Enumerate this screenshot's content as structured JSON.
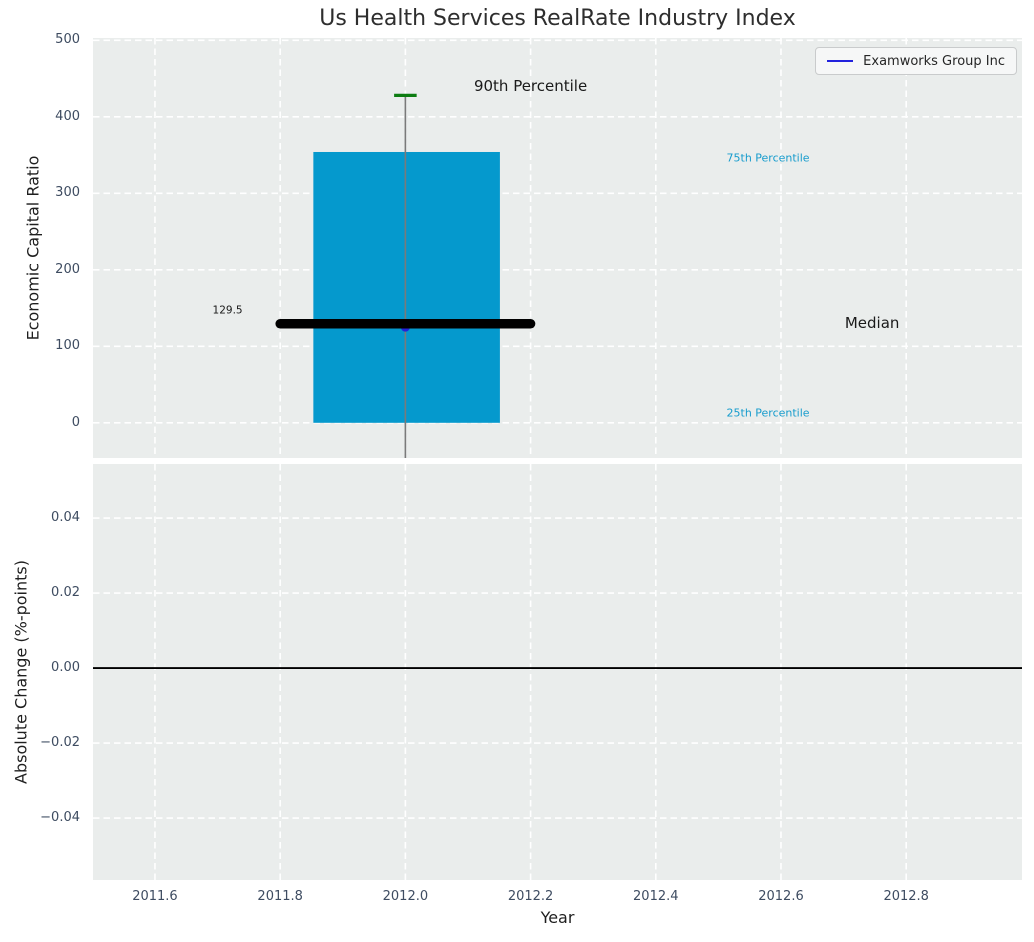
{
  "title": "Us Health Services RealRate Industry Index",
  "legend": {
    "label": "Examworks Group Inc"
  },
  "x_axis": {
    "label": "Year"
  },
  "top_chart": {
    "ylabel": "Economic Capital Ratio"
  },
  "bottom_chart": {
    "ylabel": "Absolute Change (%-points)"
  },
  "colors": {
    "axes_bg": "#eaedec",
    "grid": "#ffffff",
    "box_fill": "#0599cd",
    "whisker": "#7a7a7a",
    "cap_green": "#0d7d12",
    "median_line": "#000000",
    "company": "#2222dd",
    "zero_line": "#000000",
    "tick_label": "#3e4c61",
    "axis_label": "#1f1f1f",
    "title_color": "#2e2e2e",
    "percentile_label": "#179ccd",
    "annotation_dark": "#1a1a1a",
    "legend_bg": "#f6f7f7",
    "legend_border": "#c9cbcc"
  },
  "chart_data": [
    {
      "type": "boxplot",
      "title": "Us Health Services RealRate Industry Index",
      "xlabel": "Year",
      "ylabel": "Economic Capital Ratio",
      "xlim": [
        2011.501,
        2012.985
      ],
      "ylim": [
        -46,
        503
      ],
      "xticks": [
        2011.6,
        2011.8,
        2012.0,
        2012.2,
        2012.4,
        2012.6,
        2012.8
      ],
      "yticks": [
        0,
        100,
        200,
        300,
        400,
        500
      ],
      "xformat": "f1",
      "yformat": "int",
      "show_xtick_labels": false,
      "grid": true,
      "box": {
        "x": 2012.0,
        "box_left": 2011.853,
        "box_right": 2012.151,
        "p25": 0,
        "median": 129.5,
        "p75": 354,
        "p90": 428,
        "whisker_low": -46,
        "cap_halfwidth": 0.018,
        "median_left": 2011.8,
        "median_right": 2012.2
      },
      "series": [
        {
          "name": "Examworks Group Inc",
          "color": "#2222dd",
          "points": [
            [
              2012.0,
              125
            ]
          ]
        }
      ],
      "annotations": [
        {
          "text": "90th Percentile",
          "x": 2012.2,
          "y": 440,
          "ha": "center",
          "size": 15,
          "color": "#1a1a1a"
        },
        {
          "text": "75th Percentile",
          "x": 2012.513,
          "y": 346,
          "ha": "left",
          "size": 11,
          "color": "#179ccd"
        },
        {
          "text": "25th Percentile",
          "x": 2012.513,
          "y": 13,
          "ha": "left",
          "size": 11,
          "color": "#179ccd"
        },
        {
          "text": "Median",
          "x": 2012.702,
          "y": 131,
          "ha": "left",
          "size": 15,
          "color": "#1a1a1a"
        },
        {
          "text": "129.5",
          "x": 2011.74,
          "y": 146,
          "ha": "right",
          "size": 10.5,
          "color": "#1a1a1a"
        }
      ]
    },
    {
      "type": "line",
      "xlabel": "Year",
      "ylabel": "Absolute Change (%-points)",
      "xlim": [
        2011.501,
        2012.985
      ],
      "ylim": [
        -0.0565,
        0.0544
      ],
      "xticks": [
        2011.6,
        2011.8,
        2012.0,
        2012.2,
        2012.4,
        2012.6,
        2012.8
      ],
      "yticks": [
        -0.04,
        -0.02,
        0.0,
        0.02,
        0.04
      ],
      "xformat": "f1",
      "yformat": "f2",
      "show_xtick_labels": true,
      "grid": true,
      "hline": 0.0,
      "series": []
    }
  ]
}
